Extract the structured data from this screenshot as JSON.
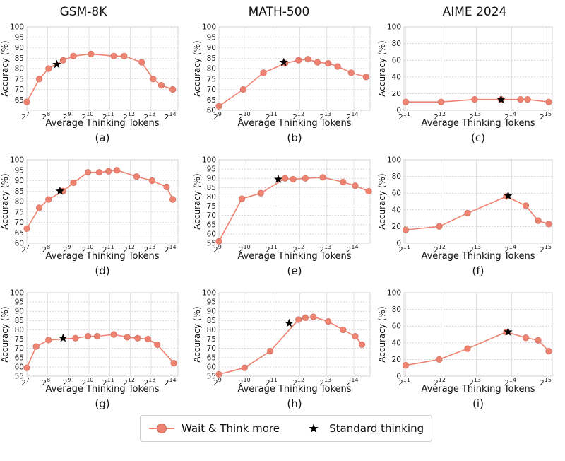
{
  "column_titles": [
    "GSM-8K",
    "MATH-500",
    "AIME 2024"
  ],
  "legend": {
    "series_label": "Wait & Think more",
    "marker_label": "Standard thinking",
    "line_color": "#ee8270",
    "star_color": "#000000"
  },
  "chart_data": [
    {
      "type": "line",
      "panel": "(a)",
      "xlabel": "Average Thinking Tokens",
      "ylabel": "Accuracy (%)",
      "xscale": "log2",
      "xlim": [
        7,
        14.3
      ],
      "xticks": [
        7,
        8,
        9,
        10,
        11,
        12,
        13,
        14
      ],
      "ylim": [
        60,
        100
      ],
      "yticks": [
        65,
        70,
        75,
        80,
        85,
        90,
        95,
        100
      ],
      "series": [
        {
          "x_log2": [
            7,
            7.6,
            8.05,
            8.75,
            9.25,
            10.1,
            11.2,
            11.7,
            12.55,
            13.1,
            13.5,
            14.05
          ],
          "y": [
            64,
            75,
            80,
            84,
            86,
            87,
            86,
            86,
            83,
            75,
            72,
            70
          ]
        }
      ],
      "standard": {
        "x_log2": 8.45,
        "y": 82
      }
    },
    {
      "type": "line",
      "panel": "(b)",
      "xlabel": "Average Thinking Tokens",
      "ylabel": "Accuracy (%)",
      "xscale": "log2",
      "xlim": [
        9,
        14.6
      ],
      "xticks": [
        9,
        10,
        11,
        12,
        13,
        14
      ],
      "ylim": [
        60,
        100
      ],
      "yticks": [
        60,
        65,
        70,
        75,
        80,
        85,
        90,
        95,
        100
      ],
      "series": [
        {
          "x_log2": [
            9,
            9.9,
            10.65,
            11.45,
            11.95,
            12.3,
            12.65,
            13.05,
            13.4,
            13.9,
            14.45
          ],
          "y": [
            62,
            70,
            78,
            82.5,
            84,
            84.5,
            83,
            82.5,
            81,
            78,
            76
          ]
        }
      ],
      "standard": {
        "x_log2": 11.4,
        "y": 83
      }
    },
    {
      "type": "line",
      "panel": "(c)",
      "xlabel": "Average Thinking Tokens",
      "ylabel": "Accuracy (%)",
      "xscale": "log2",
      "xlim": [
        10.95,
        15.15
      ],
      "xticks": [
        11,
        12,
        13,
        14,
        15
      ],
      "ylim": [
        0,
        100
      ],
      "yticks": [
        0,
        20,
        40,
        60,
        80,
        100
      ],
      "series": [
        {
          "x_log2": [
            11,
            12,
            12.95,
            13.7,
            14.25,
            14.45,
            15.05
          ],
          "y": [
            10,
            10,
            13,
            13,
            13,
            13,
            10
          ]
        }
      ],
      "standard": {
        "x_log2": 13.7,
        "y": 13
      }
    },
    {
      "type": "line",
      "panel": "(d)",
      "xlabel": "Average Thinking Tokens",
      "ylabel": "Accuracy (%)",
      "xscale": "log2",
      "xlim": [
        7,
        14.3
      ],
      "xticks": [
        7,
        8,
        9,
        10,
        11,
        12,
        13,
        14
      ],
      "ylim": [
        60,
        100
      ],
      "yticks": [
        60,
        65,
        70,
        75,
        80,
        85,
        90,
        95,
        100
      ],
      "series": [
        {
          "x_log2": [
            7,
            7.6,
            8.05,
            8.75,
            9.25,
            9.95,
            10.5,
            10.95,
            11.35,
            12.3,
            13.05,
            13.75,
            14.05
          ],
          "y": [
            67,
            77,
            81,
            85,
            89,
            94,
            94,
            94.5,
            95,
            92,
            90,
            87,
            81
          ]
        }
      ],
      "standard": {
        "x_log2": 8.6,
        "y": 85
      }
    },
    {
      "type": "line",
      "panel": "(e)",
      "xlabel": "Average Thinking Tokens",
      "ylabel": "Accuracy (%)",
      "xscale": "log2",
      "xlim": [
        9,
        14.6
      ],
      "xticks": [
        9,
        10,
        11,
        12,
        13,
        14
      ],
      "ylim": [
        55,
        100
      ],
      "yticks": [
        55,
        60,
        65,
        70,
        75,
        80,
        85,
        90,
        95,
        100
      ],
      "series": [
        {
          "x_log2": [
            9,
            9.85,
            10.55,
            11.45,
            11.75,
            12.2,
            12.85,
            13.6,
            14.05,
            14.55
          ],
          "y": [
            56,
            79,
            82,
            90,
            89.5,
            90,
            90.5,
            88,
            86,
            83
          ]
        }
      ],
      "standard": {
        "x_log2": 11.2,
        "y": 89.5
      }
    },
    {
      "type": "line",
      "panel": "(f)",
      "xlabel": "Average Thinking Tokens",
      "ylabel": "Accuracy (%)",
      "xscale": "log2",
      "xlim": [
        10.95,
        15.15
      ],
      "xticks": [
        11,
        12,
        13,
        14,
        15
      ],
      "ylim": [
        0,
        100
      ],
      "yticks": [
        0,
        20,
        40,
        60,
        80,
        100
      ],
      "series": [
        {
          "x_log2": [
            11,
            11.95,
            12.75,
            13.85,
            14.4,
            14.75,
            15.05
          ],
          "y": [
            16,
            20,
            36,
            56,
            45,
            27,
            23
          ]
        }
      ],
      "standard": {
        "x_log2": 13.9,
        "y": 57
      }
    },
    {
      "type": "line",
      "panel": "(g)",
      "xlabel": "Average Thinking Tokens",
      "ylabel": "Accuracy (%)",
      "xscale": "log2",
      "xlim": [
        7,
        14.3
      ],
      "xticks": [
        7,
        8,
        9,
        10,
        11,
        12,
        13,
        14
      ],
      "ylim": [
        55,
        100
      ],
      "yticks": [
        55,
        60,
        65,
        70,
        75,
        80,
        85,
        90,
        95,
        100
      ],
      "series": [
        {
          "x_log2": [
            7,
            7.45,
            8.05,
            9.35,
            9.95,
            10.4,
            11.2,
            11.85,
            12.35,
            12.85,
            13.3,
            14.1
          ],
          "y": [
            59.5,
            71,
            74.5,
            75.5,
            76.5,
            76.5,
            77.5,
            76,
            75.5,
            75,
            72,
            62
          ]
        }
      ],
      "standard": {
        "x_log2": 8.75,
        "y": 75.5
      }
    },
    {
      "type": "line",
      "panel": "(h)",
      "xlabel": "Average Thinking Tokens",
      "ylabel": "Accuracy (%)",
      "xscale": "log2",
      "xlim": [
        9,
        14.6
      ],
      "xticks": [
        9,
        10,
        11,
        12,
        13,
        14
      ],
      "ylim": [
        55,
        100
      ],
      "yticks": [
        55,
        60,
        65,
        70,
        75,
        80,
        85,
        90,
        95,
        100
      ],
      "series": [
        {
          "x_log2": [
            9,
            9.95,
            10.9,
            11.95,
            12.2,
            12.5,
            13.05,
            13.6,
            14.05,
            14.3
          ],
          "y": [
            56,
            59.5,
            68.5,
            85.5,
            86.5,
            87,
            84.5,
            80,
            76.5,
            72
          ]
        }
      ],
      "standard": {
        "x_log2": 11.6,
        "y": 83.5
      }
    },
    {
      "type": "line",
      "panel": "(i)",
      "xlabel": "Average Thinking Tokens",
      "ylabel": "Accuracy (%)",
      "xscale": "log2",
      "xlim": [
        10.95,
        15.15
      ],
      "xticks": [
        11,
        12,
        13,
        14,
        15
      ],
      "ylim": [
        0,
        100
      ],
      "yticks": [
        0,
        20,
        40,
        60,
        80,
        100
      ],
      "series": [
        {
          "x_log2": [
            11,
            11.95,
            12.75,
            13.85,
            14.4,
            14.75,
            15.05
          ],
          "y": [
            13,
            20,
            33,
            53,
            46,
            43,
            30
          ]
        }
      ],
      "standard": {
        "x_log2": 13.9,
        "y": 53
      }
    }
  ]
}
